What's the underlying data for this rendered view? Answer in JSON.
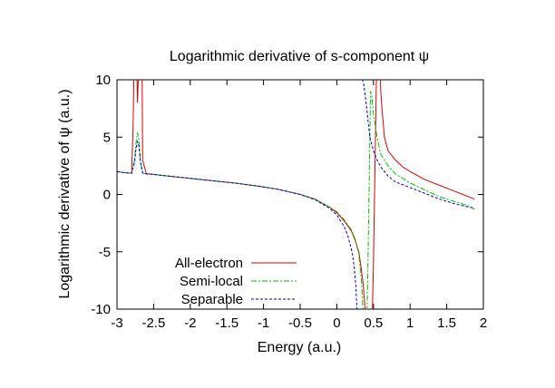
{
  "chart_data": {
    "type": "line",
    "title": "Logarithmic derivative of s-component ψ",
    "xlabel": "Energy (a.u.)",
    "ylabel": "Logarithmic derivative of ψ (a.u.)",
    "xlim": [
      -3,
      2
    ],
    "ylim": [
      -10,
      10
    ],
    "xticks": [
      -3,
      -2.5,
      -2,
      -1.5,
      -1,
      -0.5,
      0,
      0.5,
      1,
      1.5,
      2
    ],
    "xtick_labels": [
      "-3",
      "-2.5",
      "-2",
      "-1.5",
      "-1",
      "-0.5",
      "0",
      "0.5",
      "1",
      "1.5",
      "2"
    ],
    "yticks": [
      -10,
      -5,
      0,
      5,
      10
    ],
    "ytick_labels": [
      "-10",
      "-5",
      "0",
      "5",
      "10"
    ],
    "grid": false,
    "legend_position": "bottom-left",
    "series": [
      {
        "name": "All-electron",
        "color": "#e00000",
        "dash": "",
        "x": [
          -3.0,
          -2.9,
          -2.8,
          -2.78,
          -2.76,
          -2.75,
          -2.74,
          -2.72,
          -2.7,
          -2.68,
          -2.67,
          -2.66,
          -2.65,
          -2.6,
          -2.5,
          -2.3,
          -2.0,
          -1.7,
          -1.4,
          -1.1,
          -0.8,
          -0.5,
          -0.3,
          -0.1,
          0.0,
          0.1,
          0.2,
          0.25,
          0.3,
          0.33,
          0.36,
          0.38,
          0.4,
          0.42,
          0.44,
          0.46,
          0.48,
          0.5,
          0.52,
          0.54,
          0.56,
          0.58,
          0.6,
          0.62,
          0.65,
          0.7,
          0.8,
          0.9,
          1.0,
          1.2,
          1.4,
          1.6,
          1.8,
          1.88
        ],
        "y": [
          2.0,
          1.9,
          1.85,
          6.0,
          14.0,
          null,
          14.0,
          8.0,
          12.0,
          14.0,
          null,
          14.0,
          3.0,
          1.82,
          1.75,
          1.6,
          1.4,
          1.2,
          1.0,
          0.75,
          0.45,
          0.0,
          -0.4,
          -1.1,
          -1.6,
          -2.3,
          -3.2,
          -4.0,
          -5.0,
          -6.3,
          -7.8,
          -9.5,
          -11.5,
          -14.0,
          null,
          -14.0,
          -12.0,
          -6.0,
          2.0,
          10.0,
          13.0,
          14.0,
          9.0,
          7.2,
          5.0,
          3.8,
          3.0,
          2.4,
          2.0,
          1.3,
          0.8,
          0.3,
          -0.2,
          -0.4
        ]
      },
      {
        "name": "Semi-local",
        "color": "#00c000",
        "dash": "6,2,2,2",
        "x": [
          -3.0,
          -2.9,
          -2.8,
          -2.76,
          -2.74,
          -2.72,
          -2.7,
          -2.68,
          -2.65,
          -2.6,
          -2.5,
          -2.3,
          -2.0,
          -1.7,
          -1.4,
          -1.1,
          -0.8,
          -0.5,
          -0.3,
          -0.1,
          0.0,
          0.1,
          0.2,
          0.25,
          0.3,
          0.33,
          0.35,
          0.36,
          0.37,
          0.38,
          0.4,
          0.42,
          0.44,
          0.46,
          0.48,
          0.5,
          0.55,
          0.6,
          0.7,
          0.8,
          1.0,
          1.2,
          1.4,
          1.6,
          1.8,
          1.88
        ],
        "y": [
          2.0,
          1.9,
          1.85,
          3.0,
          4.5,
          5.4,
          4.8,
          3.0,
          1.85,
          1.8,
          1.75,
          1.6,
          1.4,
          1.2,
          1.0,
          0.75,
          0.45,
          0.0,
          -0.4,
          -1.1,
          -1.5,
          -2.2,
          -3.1,
          -3.9,
          -5.2,
          -7.0,
          -9.0,
          -11.0,
          -14.0,
          null,
          -14.0,
          -8.0,
          0.0,
          9.0,
          8.5,
          7.0,
          5.0,
          3.5,
          2.5,
          1.8,
          1.0,
          0.4,
          -0.2,
          -0.6,
          -1.0,
          -1.3
        ]
      },
      {
        "name": "Separable",
        "color": "#0000d0",
        "dash": "3,2",
        "x": [
          -3.0,
          -2.9,
          -2.8,
          -2.76,
          -2.74,
          -2.72,
          -2.7,
          -2.68,
          -2.65,
          -2.6,
          -2.5,
          -2.3,
          -2.0,
          -1.7,
          -1.4,
          -1.1,
          -0.8,
          -0.5,
          -0.3,
          -0.1,
          0.0,
          0.1,
          0.15,
          0.2,
          0.22,
          0.24,
          0.26,
          0.27,
          0.28,
          0.29,
          0.3,
          0.31,
          0.32,
          0.33,
          0.34,
          0.35,
          0.37,
          0.4,
          0.42,
          0.45,
          0.5,
          0.55,
          0.6,
          0.7,
          0.8,
          1.0,
          1.2,
          1.4,
          1.6,
          1.8,
          1.88
        ],
        "y": [
          2.0,
          1.9,
          1.85,
          2.8,
          4.0,
          4.6,
          4.2,
          2.8,
          1.85,
          1.8,
          1.75,
          1.6,
          1.4,
          1.2,
          1.0,
          0.75,
          0.45,
          0.0,
          -0.45,
          -1.2,
          -1.8,
          -2.8,
          -3.6,
          -4.8,
          -5.5,
          -6.5,
          -8.0,
          -9.5,
          -11.0,
          -14.0,
          null,
          14.0,
          12.0,
          11.0,
          10.5,
          10.0,
          9.5,
          8.0,
          6.8,
          5.0,
          3.8,
          3.0,
          2.4,
          1.6,
          1.1,
          0.6,
          0.1,
          -0.4,
          -0.8,
          -1.1,
          -1.2
        ]
      }
    ]
  }
}
